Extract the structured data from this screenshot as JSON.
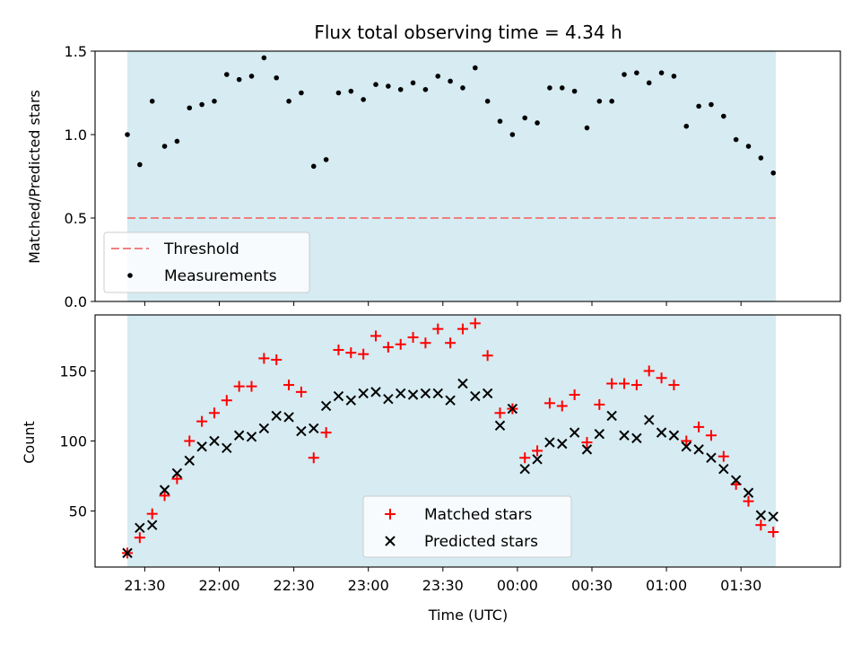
{
  "chart_data": [
    {
      "type": "scatter",
      "title": "Flux total observing time = 4.34 h",
      "xlabel": "",
      "ylabel": "Matched/Predicted stars",
      "ylim": [
        0,
        1.5
      ],
      "yticks": [
        "0.0",
        "0.5",
        "1.0",
        "1.5"
      ],
      "span_start": "21:23",
      "span_end": "01:44",
      "threshold": {
        "name": "Threshold",
        "y": 0.5,
        "color": "#f08080"
      },
      "legend_position": "lower-left",
      "series": [
        {
          "name": "Measurements",
          "color": "#000000",
          "x": [
            "21:23",
            "21:28",
            "21:33",
            "21:38",
            "21:43",
            "21:48",
            "21:53",
            "21:58",
            "22:03",
            "22:08",
            "22:13",
            "22:18",
            "22:23",
            "22:28",
            "22:33",
            "22:38",
            "22:43",
            "22:48",
            "22:53",
            "22:58",
            "23:03",
            "23:08",
            "23:13",
            "23:18",
            "23:23",
            "23:28",
            "23:33",
            "23:38",
            "23:43",
            "23:48",
            "23:53",
            "23:58",
            "00:03",
            "00:08",
            "00:13",
            "00:18",
            "00:23",
            "00:28",
            "00:33",
            "00:38",
            "00:43",
            "00:48",
            "00:53",
            "00:58",
            "01:03",
            "01:08",
            "01:13",
            "01:18",
            "01:23",
            "01:28",
            "01:33",
            "01:38",
            "01:43"
          ],
          "y": [
            1.0,
            0.82,
            1.2,
            0.93,
            0.96,
            1.16,
            1.18,
            1.2,
            1.36,
            1.33,
            1.35,
            1.46,
            1.34,
            1.2,
            1.25,
            0.81,
            0.85,
            1.25,
            1.26,
            1.21,
            1.3,
            1.29,
            1.27,
            1.31,
            1.27,
            1.35,
            1.32,
            1.28,
            1.4,
            1.2,
            1.08,
            1.0,
            1.1,
            1.07,
            1.28,
            1.28,
            1.26,
            1.04,
            1.2,
            1.2,
            1.36,
            1.37,
            1.31,
            1.37,
            1.35,
            1.05,
            1.17,
            1.18,
            1.11,
            0.97,
            0.93,
            0.86,
            0.77
          ]
        }
      ]
    },
    {
      "type": "scatter",
      "title": "",
      "xlabel": "Time (UTC)",
      "ylabel": "Count",
      "ylim": [
        10,
        190
      ],
      "yticks": [
        "50",
        "100",
        "150"
      ],
      "xticks": [
        "21:30",
        "22:00",
        "22:30",
        "23:00",
        "23:30",
        "00:00",
        "00:30",
        "01:00",
        "01:30"
      ],
      "span_start": "21:23",
      "span_end": "01:44",
      "legend_position": "lower-center",
      "series": [
        {
          "name": "Matched stars",
          "color": "#ff0000",
          "marker": "+",
          "x": [
            "21:23",
            "21:28",
            "21:33",
            "21:38",
            "21:43",
            "21:48",
            "21:53",
            "21:58",
            "22:03",
            "22:08",
            "22:13",
            "22:18",
            "22:23",
            "22:28",
            "22:33",
            "22:38",
            "22:43",
            "22:48",
            "22:53",
            "22:58",
            "23:03",
            "23:08",
            "23:13",
            "23:18",
            "23:23",
            "23:28",
            "23:33",
            "23:38",
            "23:43",
            "23:48",
            "23:53",
            "23:58",
            "00:03",
            "00:08",
            "00:13",
            "00:18",
            "00:23",
            "00:28",
            "00:33",
            "00:38",
            "00:43",
            "00:48",
            "00:53",
            "00:58",
            "01:03",
            "01:08",
            "01:13",
            "01:18",
            "01:23",
            "01:28",
            "01:33",
            "01:38",
            "01:43"
          ],
          "y": [
            20,
            31,
            48,
            61,
            73,
            100,
            114,
            120,
            129,
            139,
            139,
            159,
            158,
            140,
            135,
            88,
            106,
            165,
            163,
            162,
            175,
            167,
            169,
            174,
            170,
            180,
            170,
            180,
            184,
            161,
            120,
            123,
            88,
            93,
            127,
            125,
            133,
            99,
            126,
            141,
            141,
            140,
            150,
            145,
            140,
            100,
            110,
            104,
            89,
            69,
            57,
            40,
            35
          ]
        },
        {
          "name": "Predicted stars",
          "color": "#000000",
          "marker": "x",
          "x": [
            "21:23",
            "21:28",
            "21:33",
            "21:38",
            "21:43",
            "21:48",
            "21:53",
            "21:58",
            "22:03",
            "22:08",
            "22:13",
            "22:18",
            "22:23",
            "22:28",
            "22:33",
            "22:38",
            "22:43",
            "22:48",
            "22:53",
            "22:58",
            "23:03",
            "23:08",
            "23:13",
            "23:18",
            "23:23",
            "23:28",
            "23:33",
            "23:38",
            "23:43",
            "23:48",
            "23:53",
            "23:58",
            "00:03",
            "00:08",
            "00:13",
            "00:18",
            "00:23",
            "00:28",
            "00:33",
            "00:38",
            "00:43",
            "00:48",
            "00:53",
            "00:58",
            "01:03",
            "01:08",
            "01:13",
            "01:18",
            "01:23",
            "01:28",
            "01:33",
            "01:38",
            "01:43"
          ],
          "y": [
            20,
            38,
            40,
            65,
            77,
            86,
            96,
            100,
            95,
            104,
            103,
            109,
            118,
            117,
            107,
            109,
            125,
            132,
            129,
            134,
            135,
            130,
            134,
            133,
            134,
            134,
            129,
            141,
            132,
            134,
            111,
            123,
            80,
            87,
            99,
            98,
            106,
            94,
            105,
            118,
            104,
            102,
            115,
            106,
            104,
            96,
            94,
            88,
            80,
            72,
            63,
            47,
            46
          ]
        }
      ]
    }
  ]
}
